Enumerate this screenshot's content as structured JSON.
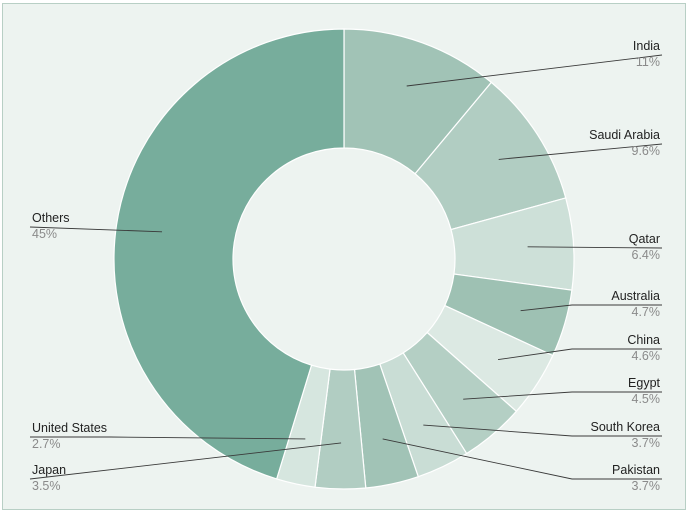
{
  "chart_data": {
    "type": "donut",
    "title": "",
    "slices": [
      {
        "label": "India",
        "value": 11,
        "display": "11%",
        "color": "#a1c3b6"
      },
      {
        "label": "Saudi Arabia",
        "value": 9.6,
        "display": "9.6%",
        "color": "#b1cdc2"
      },
      {
        "label": "Qatar",
        "value": 6.4,
        "display": "6.4%",
        "color": "#cde0d8"
      },
      {
        "label": "Australia",
        "value": 4.7,
        "display": "4.7%",
        "color": "#9ec1b3"
      },
      {
        "label": "China",
        "value": 4.6,
        "display": "4.6%",
        "color": "#dce9e3"
      },
      {
        "label": "Egypt",
        "value": 4.5,
        "display": "4.5%",
        "color": "#b4cfc4"
      },
      {
        "label": "South Korea",
        "value": 3.7,
        "display": "3.7%",
        "color": "#c9ddd5"
      },
      {
        "label": "Pakistan",
        "value": 3.7,
        "display": "3.7%",
        "color": "#a1c3b6"
      },
      {
        "label": "Japan",
        "value": 3.5,
        "display": "3.5%",
        "color": "#b1cdc2"
      },
      {
        "label": "United States",
        "value": 2.7,
        "display": "2.7%",
        "color": "#d6e6df"
      },
      {
        "label": "Others",
        "value": 45,
        "display": "45%",
        "color": "#77ad9c"
      }
    ]
  }
}
